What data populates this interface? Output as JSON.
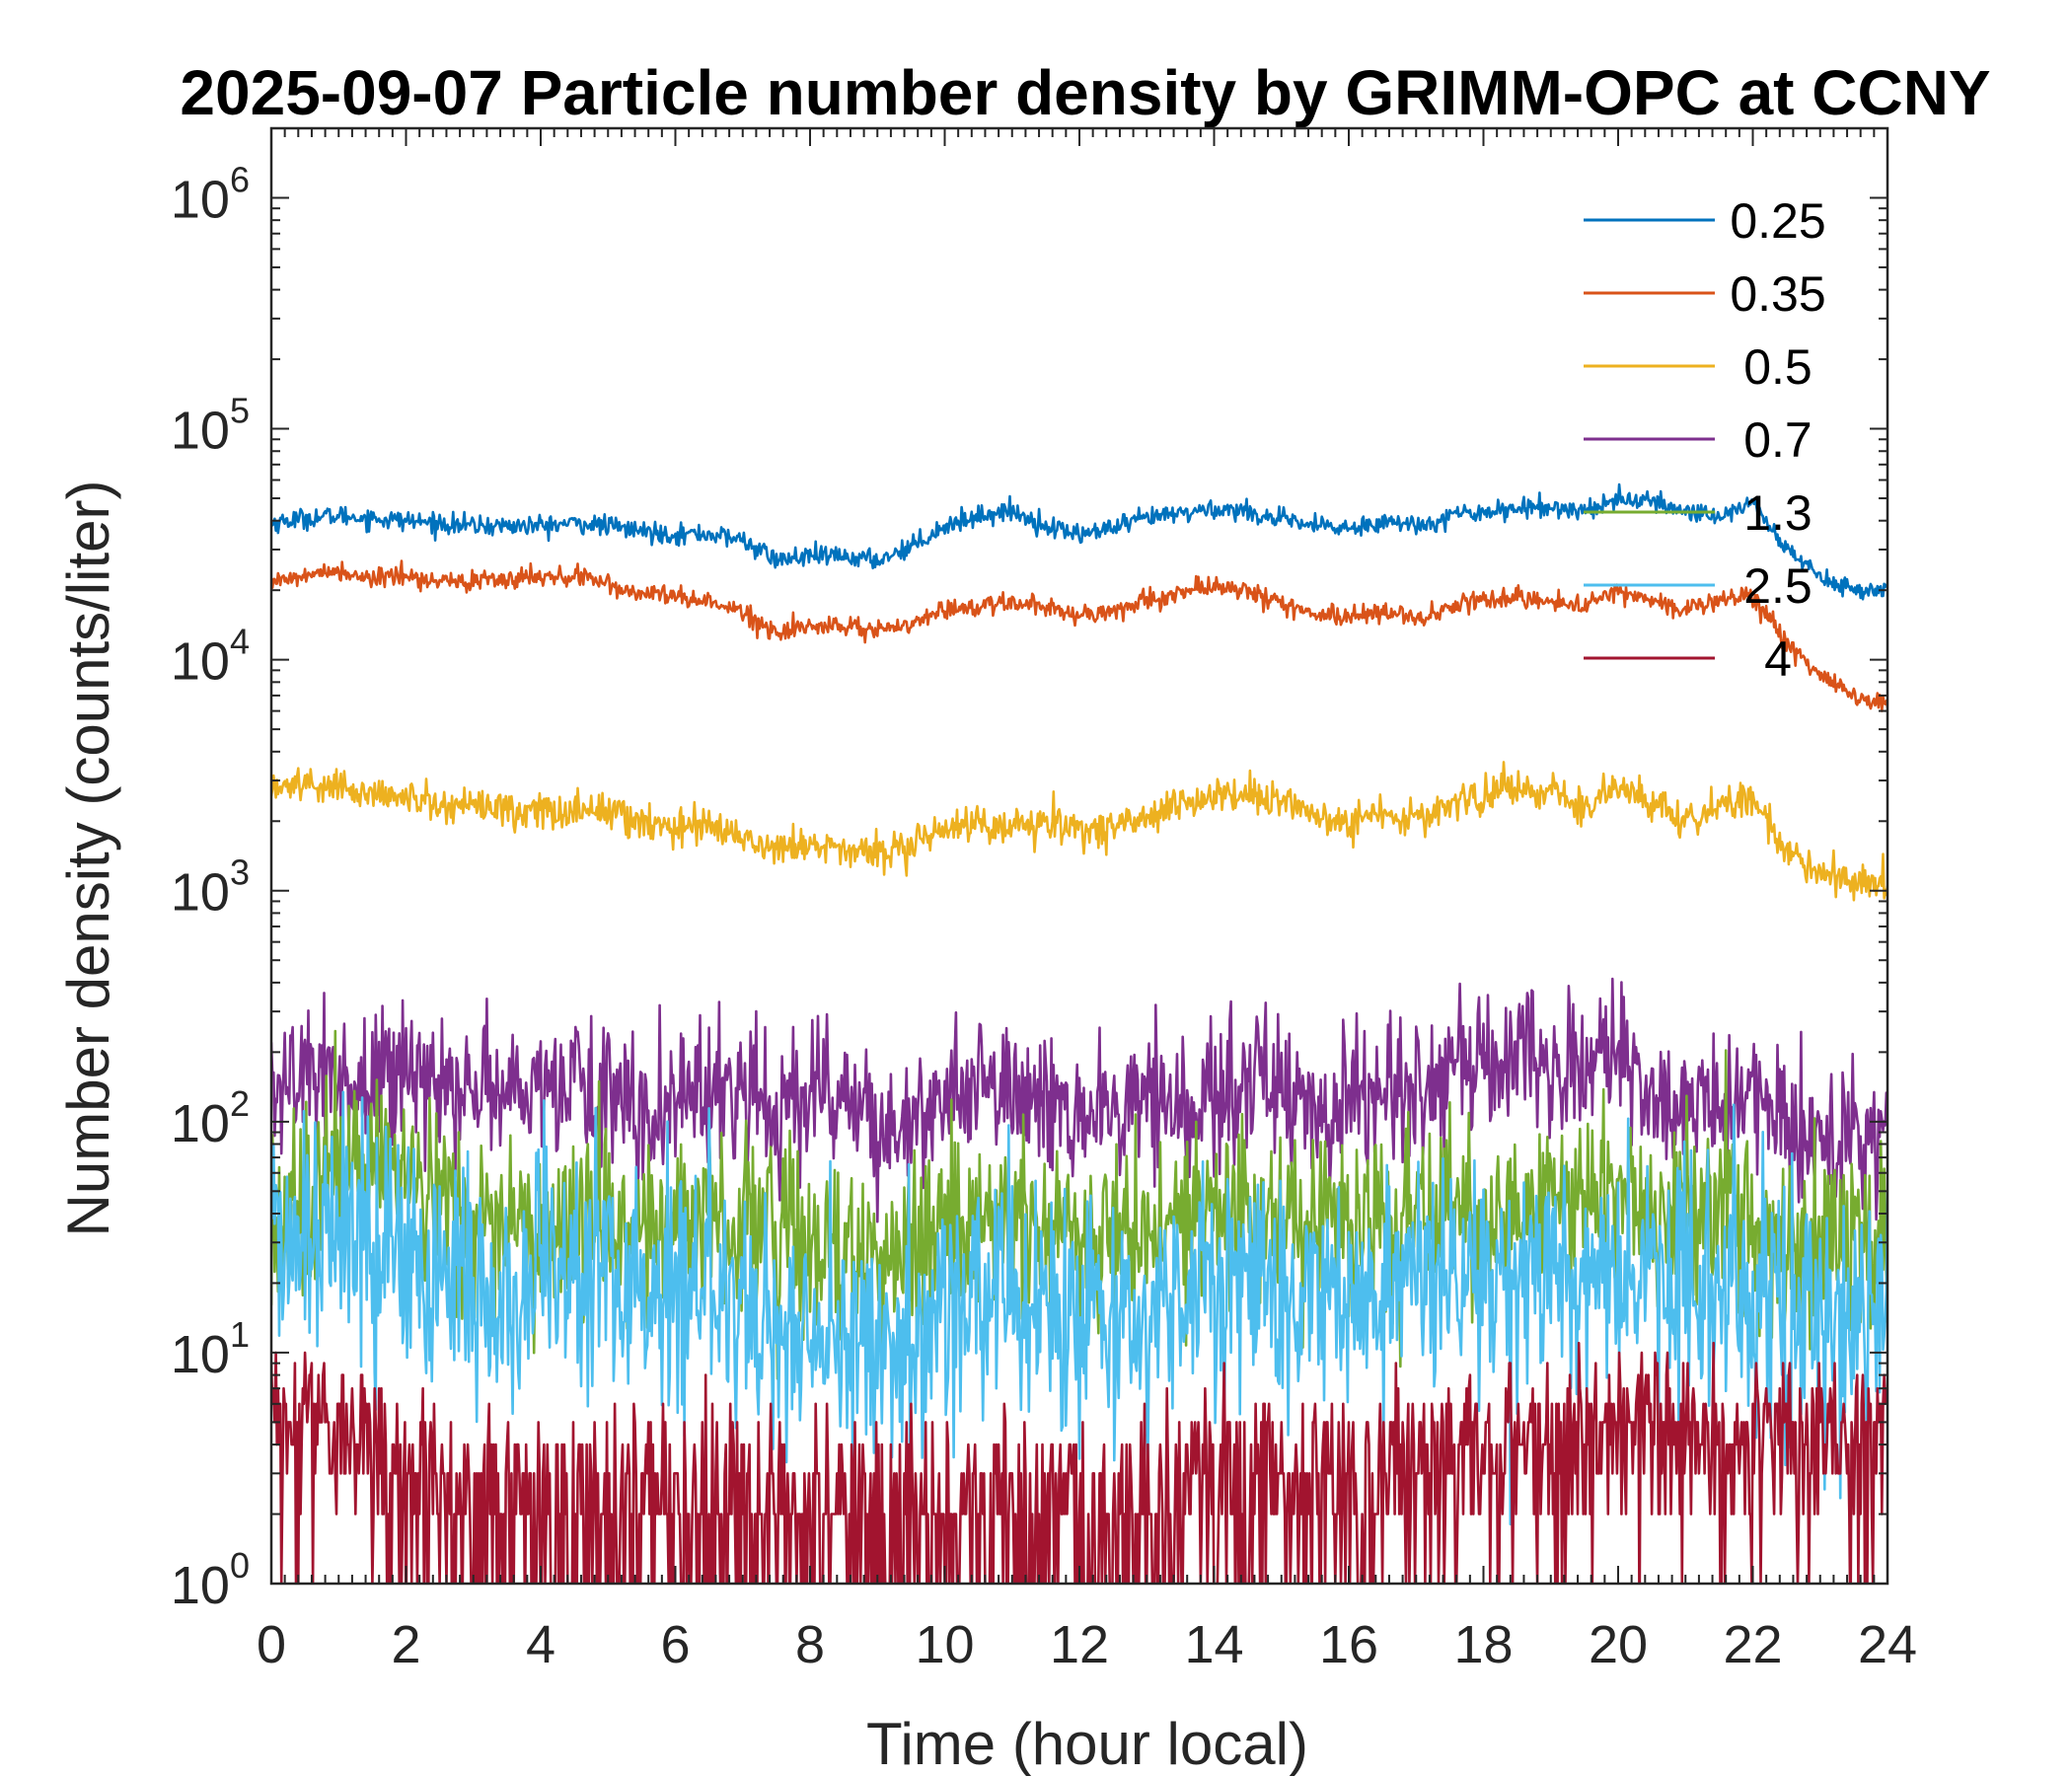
{
  "chart_data": {
    "type": "line",
    "title": "2025-09-07 Particle number density by GRIMM-OPC at CCNY",
    "xlabel": "Time (hour local)",
    "ylabel": "Number density (counts/liter)",
    "xlim": [
      0,
      24
    ],
    "ylim": [
      1,
      2000000
    ],
    "yscale": "log",
    "xticks": [
      0,
      2,
      4,
      6,
      8,
      10,
      12,
      14,
      16,
      18,
      20,
      22,
      24
    ],
    "xtick_labels": [
      "0",
      "2",
      "4",
      "6",
      "8",
      "10",
      "12",
      "14",
      "16",
      "18",
      "20",
      "22",
      "24"
    ],
    "yticks": [
      1,
      10,
      100,
      1000,
      10000,
      100000,
      1000000
    ],
    "ytick_labels": [
      {
        "base": "10",
        "exp": "0"
      },
      {
        "base": "10",
        "exp": "1"
      },
      {
        "base": "10",
        "exp": "2"
      },
      {
        "base": "10",
        "exp": "3"
      },
      {
        "base": "10",
        "exp": "4"
      },
      {
        "base": "10",
        "exp": "5"
      },
      {
        "base": "10",
        "exp": "6"
      }
    ],
    "legend_position": "top-right",
    "x": [
      0,
      0.5,
      1,
      1.5,
      2,
      2.5,
      3,
      3.5,
      4,
      4.5,
      5,
      5.5,
      6,
      6.5,
      7,
      7.5,
      8,
      8.5,
      9,
      9.5,
      10,
      10.5,
      11,
      11.5,
      12,
      12.5,
      13,
      13.5,
      14,
      14.5,
      15,
      15.5,
      16,
      16.5,
      17,
      17.5,
      18,
      18.5,
      19,
      19.5,
      20,
      20.5,
      21,
      21.5,
      22,
      22.5,
      23,
      23.5,
      24
    ],
    "series": [
      {
        "name": "0.25",
        "color": "#0072BD",
        "noise": 0.05,
        "values": [
          39000,
          41000,
          42000,
          41000,
          40000,
          39000,
          38000,
          38000,
          38000,
          39000,
          38000,
          36000,
          35000,
          35000,
          33000,
          27000,
          28000,
          28000,
          27000,
          31000,
          38000,
          42000,
          44000,
          38000,
          35000,
          37000,
          41000,
          43000,
          45000,
          44000,
          40000,
          38000,
          37000,
          40000,
          38000,
          42000,
          44000,
          45000,
          46000,
          44000,
          50000,
          48000,
          44000,
          42000,
          48000,
          30000,
          23000,
          20000,
          20000
        ]
      },
      {
        "name": "0.35",
        "color": "#D95319",
        "noise": 0.05,
        "values": [
          22000,
          23000,
          24000,
          23000,
          23000,
          22000,
          22000,
          22000,
          23000,
          23000,
          21000,
          19000,
          19000,
          18000,
          16000,
          13000,
          14000,
          14000,
          13500,
          14000,
          16500,
          17000,
          18000,
          17000,
          15500,
          16500,
          18000,
          19500,
          21000,
          19500,
          18000,
          16000,
          15000,
          16500,
          15000,
          17000,
          18000,
          18500,
          18000,
          17000,
          20000,
          18000,
          16500,
          18000,
          19000,
          12000,
          8500,
          7000,
          6500
        ]
      },
      {
        "name": "0.5",
        "color": "#EDB120",
        "noise": 0.09,
        "values": [
          2800,
          2900,
          2800,
          2600,
          2500,
          2400,
          2300,
          2300,
          2200,
          2200,
          2200,
          2000,
          1900,
          2000,
          1700,
          1500,
          1600,
          1500,
          1500,
          1600,
          1800,
          2000,
          1900,
          2000,
          1800,
          1900,
          2100,
          2400,
          2600,
          2600,
          2400,
          2100,
          1900,
          2200,
          2000,
          2400,
          2600,
          2800,
          2700,
          2300,
          2900,
          2400,
          2000,
          2300,
          2500,
          1500,
          1200,
          1100,
          1050
        ]
      },
      {
        "name": "0.7",
        "color": "#7E2F8E",
        "noise": 0.35,
        "values": [
          130,
          160,
          150,
          150,
          160,
          140,
          130,
          140,
          140,
          150,
          140,
          110,
          120,
          150,
          130,
          110,
          140,
          130,
          100,
          110,
          130,
          140,
          140,
          120,
          95,
          110,
          120,
          120,
          130,
          140,
          130,
          120,
          120,
          130,
          140,
          150,
          160,
          190,
          200,
          180,
          200,
          140,
          120,
          120,
          140,
          90,
          80,
          85,
          90
        ]
      },
      {
        "name": "1.3",
        "color": "#77AC30",
        "noise": 0.45,
        "values": [
          35,
          50,
          55,
          55,
          55,
          45,
          40,
          35,
          38,
          40,
          40,
          35,
          35,
          40,
          35,
          30,
          35,
          30,
          28,
          28,
          30,
          35,
          35,
          30,
          30,
          33,
          35,
          35,
          38,
          38,
          36,
          35,
          35,
          38,
          38,
          40,
          42,
          42,
          42,
          40,
          45,
          42,
          40,
          40,
          38,
          30,
          28,
          28,
          30
        ]
      },
      {
        "name": "2.5",
        "color": "#4DBEEE",
        "noise": 0.6,
        "values": [
          30,
          35,
          35,
          35,
          30,
          22,
          20,
          18,
          22,
          25,
          22,
          18,
          20,
          20,
          15,
          12,
          15,
          12,
          10,
          12,
          15,
          18,
          18,
          15,
          14,
          15,
          17,
          18,
          20,
          20,
          18,
          18,
          18,
          20,
          20,
          22,
          22,
          22,
          22,
          20,
          24,
          22,
          20,
          20,
          18,
          15,
          14,
          15,
          15
        ]
      },
      {
        "name": "4",
        "color": "#A2142F",
        "noise": 0.75,
        "values": [
          5,
          6,
          5,
          4,
          3,
          2.5,
          2.5,
          2.5,
          2.5,
          2.5,
          2.5,
          2.5,
          2.5,
          2.5,
          2,
          2,
          2,
          2,
          2,
          2,
          2,
          2,
          2,
          2,
          2,
          2,
          2.5,
          2.5,
          2.5,
          2.5,
          2.5,
          3,
          3,
          3,
          3.5,
          3.5,
          4,
          4,
          4.5,
          4.5,
          5,
          4.5,
          4.5,
          4.5,
          5,
          4.5,
          4.5,
          4.5,
          5
        ]
      }
    ]
  }
}
